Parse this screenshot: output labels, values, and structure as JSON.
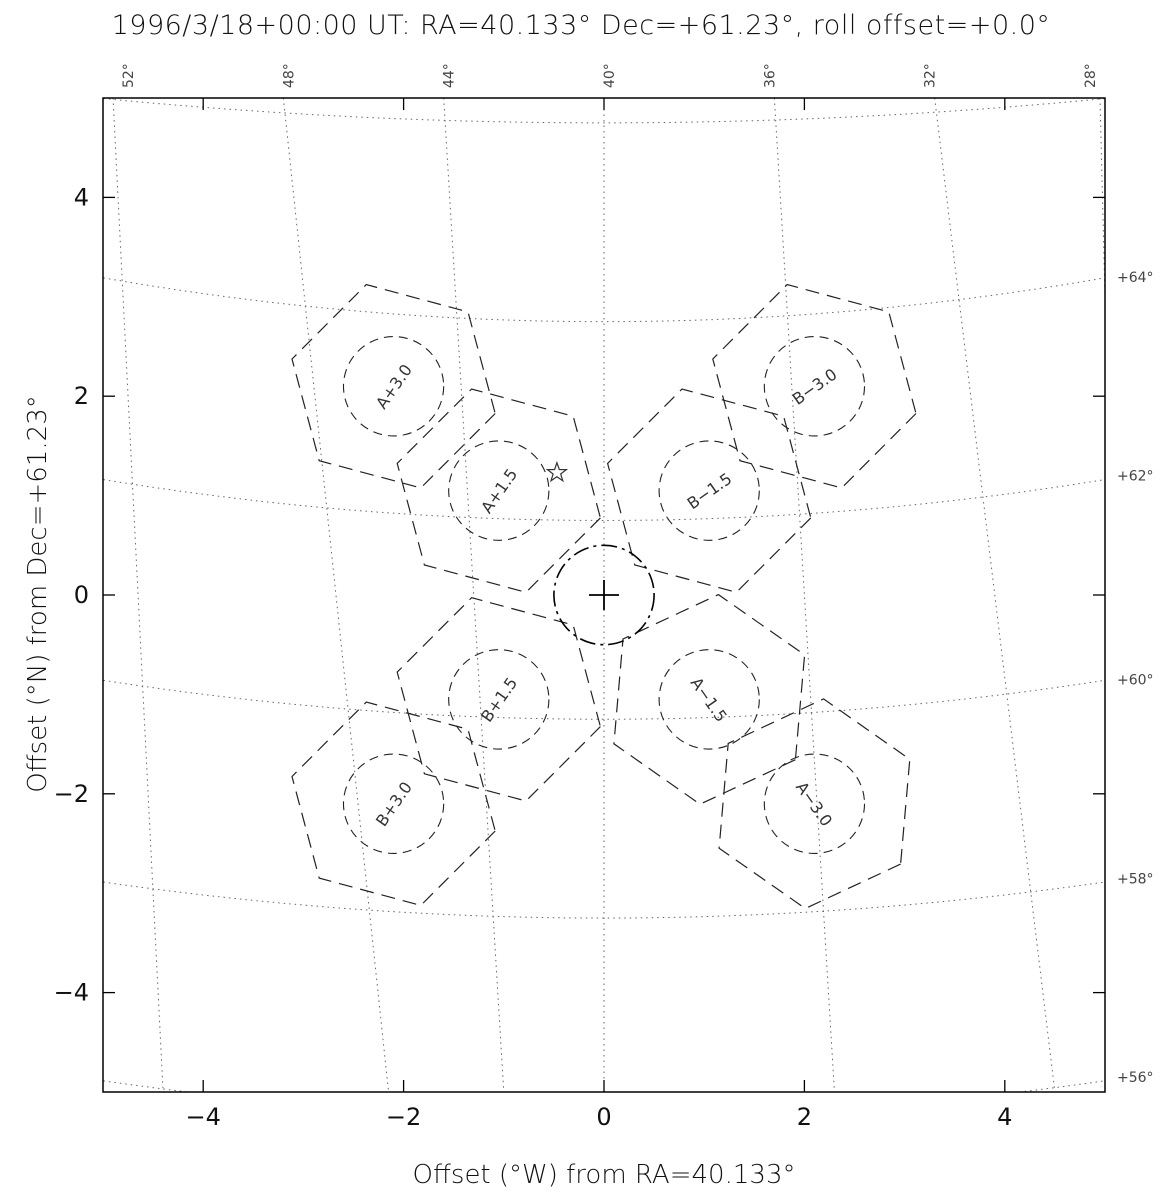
{
  "chart_data": {
    "type": "scatter",
    "title": "1996/3/18+00:00 UT: RA=40.133° Dec=+61.23°, roll offset=+0.0°",
    "xlabel": "Offset (°W) from RA=40.133°",
    "ylabel": "Offset (°N) from Dec=+61.23°",
    "xlim": [
      -5,
      5
    ],
    "ylim": [
      -5,
      5
    ],
    "x_ticks": [
      {
        "value": -4,
        "label": "−4"
      },
      {
        "value": -2,
        "label": "−2"
      },
      {
        "value": 0,
        "label": "0"
      },
      {
        "value": 2,
        "label": "2"
      },
      {
        "value": 4,
        "label": "4"
      }
    ],
    "y_ticks": [
      {
        "value": 4,
        "label": "4"
      },
      {
        "value": 2,
        "label": "2"
      },
      {
        "value": 0,
        "label": "0"
      },
      {
        "value": -2,
        "label": "−2"
      },
      {
        "value": -4,
        "label": "−4"
      }
    ],
    "ra_grid_labels": [
      {
        "ra": 52,
        "label": "52°",
        "top_x": -4.7
      },
      {
        "ra": 48,
        "label": "48°",
        "top_x": -3.1
      },
      {
        "ra": 44,
        "label": "44°",
        "top_x": -1.5
      },
      {
        "ra": 40,
        "label": "40°",
        "top_x": 0.1
      },
      {
        "ra": 36,
        "label": "36°",
        "top_x": 1.7
      },
      {
        "ra": 32,
        "label": "32°",
        "top_x": 3.3
      },
      {
        "ra": 28,
        "label": "28°",
        "top_x": 4.9
      }
    ],
    "ra_grid_lines": [
      {
        "ra": 52,
        "top_x": -4.9,
        "bottom_x": -4.4
      },
      {
        "ra": 48,
        "top_x": -3.2,
        "bottom_x": -2.15
      },
      {
        "ra": 44,
        "top_x": -1.6,
        "bottom_x": -1.0
      },
      {
        "ra": 40,
        "top_x": 0.0,
        "bottom_x": 0.0
      },
      {
        "ra": 36,
        "top_x": 1.7,
        "bottom_x": 2.3
      },
      {
        "ra": 32,
        "top_x": 3.3,
        "bottom_x": 4.5
      },
      {
        "ra": 28,
        "top_x": 4.95,
        "bottom_x": 5.2
      }
    ],
    "dec_grid_labels": [
      {
        "dec": 64,
        "label": "+64°",
        "y_right": 3.2
      },
      {
        "dec": 62,
        "label": "+62°",
        "y_right": 1.2
      },
      {
        "dec": 60,
        "label": "+60°",
        "y_right": -0.85
      },
      {
        "dec": 58,
        "label": "+58°",
        "y_right": -2.85
      },
      {
        "dec": 56,
        "label": "+56°",
        "y_right": -4.85
      }
    ],
    "dec_grid_lines": [
      {
        "dec": 66,
        "y_center": 4.75,
        "y_edge": 5.0
      },
      {
        "dec": 64,
        "y_center": 2.75,
        "y_edge": 3.2
      },
      {
        "dec": 62,
        "y_center": 0.75,
        "y_edge": 1.17
      },
      {
        "dec": 60,
        "y_center": -1.25,
        "y_edge": -0.85
      },
      {
        "dec": 58,
        "y_center": -3.25,
        "y_edge": -2.88
      },
      {
        "dec": 56,
        "y_center": -5.25,
        "y_edge": -4.88
      }
    ],
    "target": {
      "x": 0,
      "y": 0,
      "radius": 0.5,
      "marker": "plus"
    },
    "star_marker": {
      "x": -0.47,
      "y": 1.23,
      "symbol": "star-icon"
    },
    "pointings": [
      {
        "label": "A+3.0",
        "x": -2.1,
        "y": 2.1,
        "angle": -55
      },
      {
        "label": "A+1.5",
        "x": -1.05,
        "y": 1.05,
        "angle": -55
      },
      {
        "label": "B−3.0",
        "x": 2.1,
        "y": 2.1,
        "angle": -35
      },
      {
        "label": "B−1.5",
        "x": 1.05,
        "y": 1.05,
        "angle": -35
      },
      {
        "label": "B+1.5",
        "x": -1.05,
        "y": -1.05,
        "angle": -55
      },
      {
        "label": "B+3.0",
        "x": -2.1,
        "y": -2.1,
        "angle": -55
      },
      {
        "label": "A−1.5",
        "x": 1.05,
        "y": -1.05,
        "angle": 55
      },
      {
        "label": "A−3.0",
        "x": 2.1,
        "y": -2.1,
        "angle": 55
      }
    ],
    "pointing_circle_radius": 0.5,
    "pointing_hexagon_radius": 1.05,
    "grid": true,
    "legend": "none"
  }
}
